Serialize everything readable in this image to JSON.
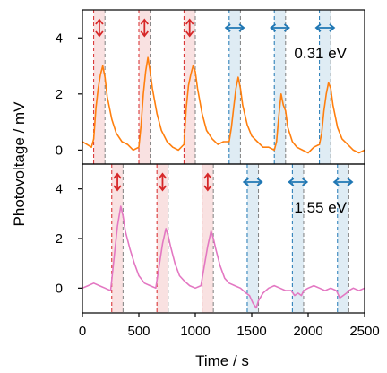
{
  "chart_data": [
    {
      "type": "line",
      "panel": "top",
      "label": "0.31 eV",
      "color": "#ff7f0e",
      "ylabel": "Photovoltage / mV",
      "xlim": [
        0,
        2500
      ],
      "ylim": [
        -0.5,
        5
      ],
      "yticks": [
        0,
        2,
        4
      ],
      "grid": false,
      "light_on_intervals": [
        {
          "start": 100,
          "end": 200,
          "polarization": "vertical",
          "color": "#d62728"
        },
        {
          "start": 500,
          "end": 600,
          "polarization": "vertical",
          "color": "#d62728"
        },
        {
          "start": 900,
          "end": 1000,
          "polarization": "vertical",
          "color": "#d62728"
        },
        {
          "start": 1300,
          "end": 1400,
          "polarization": "horizontal",
          "color": "#1f77b4"
        },
        {
          "start": 1700,
          "end": 1800,
          "polarization": "horizontal",
          "color": "#1f77b4"
        },
        {
          "start": 2100,
          "end": 2200,
          "polarization": "horizontal",
          "color": "#1f77b4"
        }
      ],
      "series": [
        {
          "x": [
            0,
            40,
            80,
            100,
            120,
            140,
            160,
            180,
            200,
            220,
            260,
            300,
            350,
            400,
            450,
            500,
            520,
            540,
            560,
            580,
            600,
            620,
            660,
            700,
            750,
            800,
            850,
            900,
            920,
            940,
            960,
            980,
            1000,
            1020,
            1060,
            1100,
            1150,
            1200,
            1250,
            1300,
            1320,
            1340,
            1360,
            1380,
            1400,
            1420,
            1460,
            1500,
            1550,
            1600,
            1650,
            1700,
            1720,
            1740,
            1760,
            1780,
            1800,
            1820,
            1860,
            1900,
            1950,
            2000,
            2050,
            2100,
            2120,
            2140,
            2160,
            2180,
            2200,
            2220,
            2260,
            2300,
            2350,
            2400,
            2450,
            2500
          ],
          "y": [
            0.3,
            0.2,
            0.1,
            0.4,
            1.5,
            2.2,
            2.7,
            3.0,
            2.6,
            1.9,
            1.1,
            0.6,
            0.3,
            0.2,
            0.0,
            0.1,
            0.9,
            2.0,
            2.8,
            3.3,
            2.8,
            2.2,
            1.3,
            0.7,
            0.3,
            0.1,
            0.0,
            0.2,
            1.5,
            2.3,
            2.7,
            3.0,
            2.8,
            2.2,
            1.3,
            0.7,
            0.4,
            0.2,
            0.3,
            0.3,
            0.8,
            1.5,
            2.2,
            2.6,
            2.2,
            1.6,
            0.9,
            0.5,
            0.3,
            0.1,
            0.1,
            0.0,
            0.3,
            1.2,
            2.0,
            1.6,
            1.4,
            0.8,
            0.3,
            0.1,
            0.0,
            -0.1,
            0.1,
            0.2,
            0.6,
            1.4,
            2.0,
            2.4,
            2.2,
            1.6,
            0.8,
            0.4,
            0.2,
            0.0,
            -0.1,
            0.0
          ]
        }
      ]
    },
    {
      "type": "line",
      "panel": "bottom",
      "label": "1.55 eV",
      "color": "#e377c2",
      "xlabel": "Time / s",
      "xlim": [
        0,
        2500
      ],
      "xticks": [
        0,
        500,
        1000,
        1500,
        2000,
        2500
      ],
      "ylim": [
        -1,
        5
      ],
      "yticks": [
        0,
        2,
        4
      ],
      "grid": false,
      "light_on_intervals": [
        {
          "start": 260,
          "end": 360,
          "polarization": "vertical",
          "color": "#d62728"
        },
        {
          "start": 660,
          "end": 760,
          "polarization": "vertical",
          "color": "#d62728"
        },
        {
          "start": 1060,
          "end": 1160,
          "polarization": "vertical",
          "color": "#d62728"
        },
        {
          "start": 1460,
          "end": 1560,
          "polarization": "horizontal",
          "color": "#1f77b4"
        },
        {
          "start": 1860,
          "end": 1960,
          "polarization": "horizontal",
          "color": "#1f77b4"
        },
        {
          "start": 2260,
          "end": 2360,
          "polarization": "horizontal",
          "color": "#1f77b4"
        }
      ],
      "series": [
        {
          "x": [
            0,
            50,
            100,
            150,
            200,
            250,
            280,
            310,
            340,
            360,
            380,
            420,
            460,
            500,
            550,
            600,
            650,
            680,
            710,
            740,
            760,
            780,
            820,
            860,
            900,
            950,
            1000,
            1050,
            1080,
            1110,
            1140,
            1160,
            1180,
            1220,
            1260,
            1300,
            1350,
            1400,
            1450,
            1480,
            1510,
            1540,
            1560,
            1600,
            1650,
            1700,
            1750,
            1800,
            1850,
            1880,
            1910,
            1940,
            1960,
            2000,
            2050,
            2100,
            2150,
            2200,
            2250,
            2280,
            2310,
            2340,
            2360,
            2400,
            2450,
            2500
          ],
          "y": [
            0.0,
            0.1,
            0.2,
            0.1,
            0.0,
            -0.1,
            1.2,
            2.5,
            3.3,
            2.9,
            2.3,
            1.6,
            1.0,
            0.5,
            0.2,
            0.1,
            0.0,
            0.9,
            1.8,
            2.4,
            2.1,
            1.7,
            1.0,
            0.5,
            0.3,
            0.1,
            0.0,
            0.1,
            0.9,
            1.7,
            2.3,
            2.0,
            1.6,
            0.9,
            0.4,
            0.2,
            0.1,
            0.0,
            -0.2,
            -0.3,
            -0.6,
            -0.8,
            -0.5,
            -0.2,
            0.0,
            0.1,
            0.0,
            -0.1,
            -0.1,
            -0.3,
            -0.2,
            -0.3,
            -0.1,
            0.0,
            0.1,
            0.0,
            -0.1,
            0.0,
            -0.1,
            -0.4,
            -0.3,
            -0.2,
            -0.1,
            0.0,
            -0.1,
            0.0
          ]
        }
      ]
    }
  ]
}
